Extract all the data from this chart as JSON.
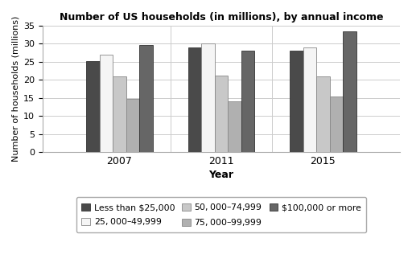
{
  "title": "Number of US households (in millions), by annual income",
  "xlabel": "Year",
  "ylabel": "Number of households (millions)",
  "years": [
    "2007",
    "2011",
    "2015"
  ],
  "categories": [
    "Less than $25,000",
    "$25,000–$49,999",
    "$50,000–$74,999",
    "$75,000–$99,999",
    "$100,000 or more"
  ],
  "values": {
    "Less than $25,000": [
      25.3,
      29.0,
      28.1
    ],
    "$25,000–$49,999": [
      27.0,
      30.0,
      29.0
    ],
    "$50,000–$74,999": [
      21.0,
      21.2,
      21.0
    ],
    "$75,000–$99,999": [
      14.8,
      14.0,
      15.3
    ],
    "$100,000 or more": [
      29.7,
      28.0,
      33.5
    ]
  },
  "colors": [
    "#4a4a4a",
    "#f5f5f5",
    "#c8c8c8",
    "#b0b0b0",
    "#666666"
  ],
  "edge_colors": [
    "#333333",
    "#888888",
    "#888888",
    "#888888",
    "#333333"
  ],
  "ylim": [
    0,
    35
  ],
  "yticks": [
    0,
    5,
    10,
    15,
    20,
    25,
    30,
    35
  ],
  "bar_width": 0.13,
  "background_color": "#ffffff",
  "grid_color": "#cccccc"
}
